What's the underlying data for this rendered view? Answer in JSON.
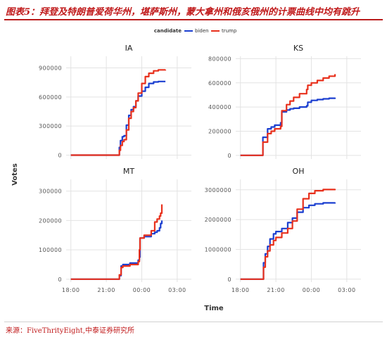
{
  "header": {
    "figure_title": "图表5：拜登及特朗普爱荷华州，堪萨斯州，蒙大拿州和俄亥俄州的计票曲线中均有跳升"
  },
  "footer": {
    "source": "来源：FiveThrityEight,中泰证券研究所"
  },
  "colors": {
    "biden": "#1b3fd0",
    "trump": "#e8301c",
    "panel_bg": "#ffffff",
    "grid": "#e3e3e3"
  },
  "chart_data": {
    "type": "line",
    "legend": {
      "title": "candidate",
      "position": "top",
      "items": [
        {
          "name": "biden",
          "color": "#1b3fd0"
        },
        {
          "name": "trump",
          "color": "#e8301c"
        }
      ]
    },
    "xlabel": "Time",
    "ylabel": "Votes",
    "x_tick_labels": [
      "18:00",
      "21:00",
      "00:00",
      "03:00"
    ],
    "x_ticks_hours": [
      18,
      21,
      24,
      27
    ],
    "xlim_hours": [
      17.6,
      28.2
    ],
    "panels": [
      {
        "title": "IA",
        "ylim": [
          -40000,
          1020000
        ],
        "y_ticks": [
          0,
          300000,
          600000,
          900000
        ],
        "y_tick_labels": [
          "0",
          "300000",
          "600000",
          "900000"
        ],
        "series": [
          {
            "name": "biden",
            "x": [
              18.0,
              22.0,
              22.1,
              22.2,
              22.35,
              22.5,
              22.7,
              22.9,
              23.1,
              23.3,
              23.5,
              23.7,
              24.0,
              24.3,
              24.6,
              25.0,
              25.4,
              26.0
            ],
            "y": [
              0,
              0,
              80000,
              150000,
              190000,
              200000,
              310000,
              410000,
              470000,
              500000,
              560000,
              610000,
              660000,
              700000,
              740000,
              755000,
              760000,
              760000
            ]
          },
          {
            "name": "trump",
            "x": [
              18.0,
              22.0,
              22.1,
              22.2,
              22.35,
              22.5,
              22.7,
              22.9,
              23.1,
              23.3,
              23.5,
              23.7,
              24.0,
              24.3,
              24.6,
              25.0,
              25.4,
              26.0
            ],
            "y": [
              0,
              0,
              50000,
              100000,
              140000,
              160000,
              260000,
              380000,
              450000,
              490000,
              560000,
              640000,
              740000,
              810000,
              845000,
              870000,
              880000,
              882000
            ]
          }
        ]
      },
      {
        "title": "KS",
        "ylim": [
          -30000,
          820000
        ],
        "y_ticks": [
          0,
          200000,
          400000,
          600000,
          800000
        ],
        "y_tick_labels": [
          "0",
          "200000",
          "400000",
          "600000",
          "800000"
        ],
        "series": [
          {
            "name": "biden",
            "x": [
              18.0,
              19.9,
              19.9,
              20.3,
              20.3,
              20.6,
              20.9,
              21.1,
              21.4,
              21.5,
              21.9,
              22.2,
              22.5,
              23.0,
              23.6,
              23.7,
              24.0,
              24.5,
              25.0,
              25.5,
              26.0
            ],
            "y": [
              0,
              0,
              150000,
              150000,
              220000,
              235000,
              250000,
              250000,
              270000,
              360000,
              375000,
              385000,
              390000,
              400000,
              410000,
              440000,
              455000,
              462000,
              468000,
              473000,
              478000
            ]
          },
          {
            "name": "trump",
            "x": [
              18.0,
              19.9,
              19.9,
              20.3,
              20.3,
              20.6,
              20.9,
              21.1,
              21.4,
              21.5,
              21.9,
              22.2,
              22.5,
              23.0,
              23.6,
              23.7,
              24.0,
              24.5,
              25.0,
              25.5,
              26.0
            ],
            "y": [
              0,
              0,
              110000,
              110000,
              180000,
              200000,
              220000,
              220000,
              240000,
              370000,
              420000,
              450000,
              480000,
              510000,
              545000,
              580000,
              600000,
              620000,
              640000,
              655000,
              672000
            ]
          }
        ]
      },
      {
        "title": "MT",
        "ylim": [
          -10000,
          340000
        ],
        "y_ticks": [
          0,
          100000,
          200000,
          300000
        ],
        "y_tick_labels": [
          "0",
          "100000",
          "200000",
          "300000"
        ],
        "series": [
          {
            "name": "biden",
            "x": [
              18.0,
              22.0,
              22.1,
              22.25,
              22.4,
              23.0,
              23.1,
              23.7,
              23.8,
              23.85,
              24.2,
              24.8,
              25.1,
              25.3,
              25.5,
              25.6,
              25.7
            ],
            "y": [
              0,
              0,
              12000,
              45000,
              50000,
              55000,
              55000,
              65000,
              75000,
              140000,
              145000,
              155000,
              160000,
              165000,
              175000,
              190000,
              200000
            ]
          },
          {
            "name": "trump",
            "x": [
              18.0,
              22.0,
              22.1,
              22.25,
              22.4,
              23.0,
              23.1,
              23.7,
              23.8,
              23.85,
              24.2,
              24.8,
              25.1,
              25.3,
              25.5,
              25.6,
              25.7
            ],
            "y": [
              0,
              0,
              15000,
              40000,
              45000,
              50000,
              50000,
              60000,
              100000,
              140000,
              150000,
              165000,
              195000,
              205000,
              215000,
              225000,
              255000
            ]
          }
        ]
      },
      {
        "title": "OH",
        "ylim": [
          -100000,
          3350000
        ],
        "y_ticks": [
          0,
          1000000,
          2000000,
          3000000
        ],
        "y_tick_labels": [
          "0",
          "1000000",
          "2000000",
          "3000000"
        ],
        "series": [
          {
            "name": "biden",
            "x": [
              18.0,
              19.85,
              19.95,
              20.1,
              20.3,
              20.5,
              20.8,
              21.0,
              21.5,
              22.0,
              22.4,
              22.8,
              23.3,
              23.8,
              24.3,
              25.0,
              26.0
            ],
            "y": [
              0,
              0,
              550000,
              850000,
              1100000,
              1350000,
              1520000,
              1600000,
              1700000,
              1900000,
              2050000,
              2250000,
              2400000,
              2480000,
              2530000,
              2560000,
              2575000
            ]
          },
          {
            "name": "trump",
            "x": [
              18.0,
              19.85,
              19.95,
              20.1,
              20.3,
              20.5,
              20.8,
              21.0,
              21.5,
              22.0,
              22.4,
              22.8,
              23.3,
              23.8,
              24.3,
              25.0,
              26.0
            ],
            "y": [
              0,
              0,
              400000,
              750000,
              950000,
              1150000,
              1300000,
              1400000,
              1550000,
              1700000,
              1950000,
              2350000,
              2700000,
              2880000,
              2970000,
              3010000,
              3030000
            ]
          }
        ]
      }
    ]
  }
}
